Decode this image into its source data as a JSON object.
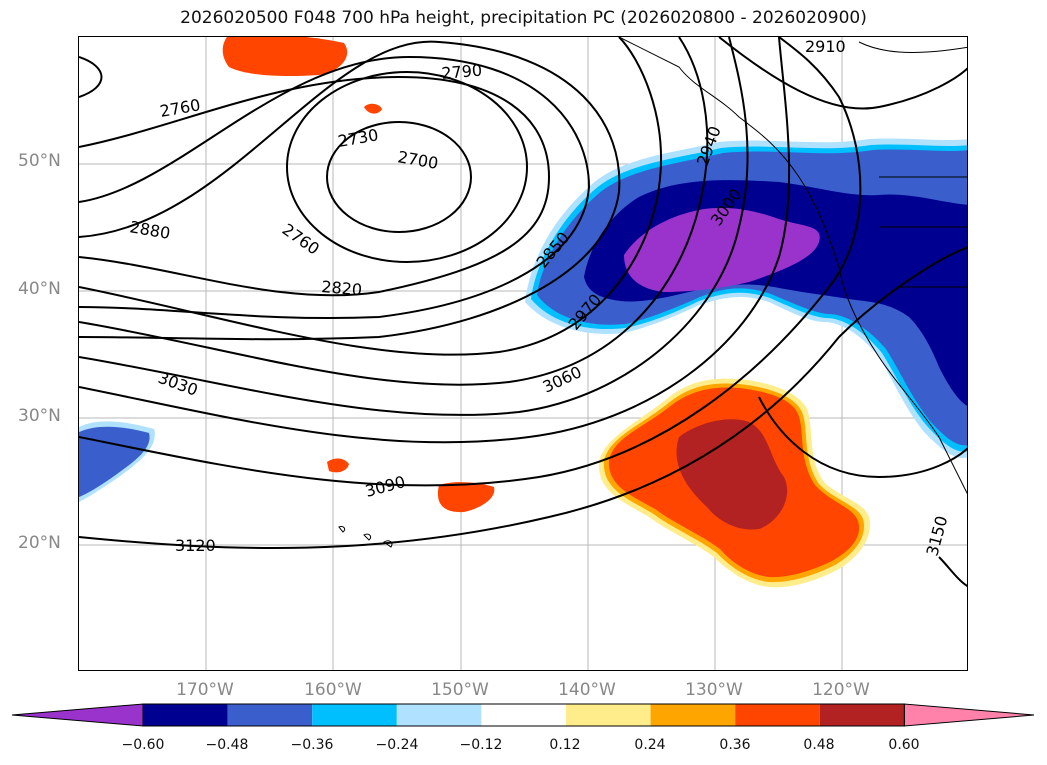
{
  "title": "2026020500 F048 700 hPa height, precipitation PC (2026020800 - 2026020900)",
  "map": {
    "lat_labels": [
      "50°N",
      "40°N",
      "30°N",
      "20°N"
    ],
    "lon_labels": [
      "170°W",
      "160°W",
      "150°W",
      "140°W",
      "130°W",
      "120°W"
    ],
    "contour_labels": [
      "2760",
      "2790",
      "2730",
      "2700",
      "2910",
      "2940",
      "3000",
      "2880",
      "2760",
      "2820",
      "2850",
      "2970",
      "3030",
      "3060",
      "3090",
      "3120",
      "3150"
    ],
    "colors": {
      "neg_060": "#9933cc",
      "neg_048": "#000090",
      "neg_036": "#3a5fcd",
      "neg_024": "#00bfff",
      "neg_012": "#b0e2ff",
      "pos_012": "#ffec8b",
      "pos_024": "#ffa500",
      "pos_036": "#ff4500",
      "pos_048": "#b22222",
      "pos_060": "#ff82ab"
    }
  },
  "colorbar": {
    "ticks": [
      "−0.60",
      "−0.48",
      "−0.36",
      "−0.24",
      "−0.12",
      "0.12",
      "0.24",
      "0.36",
      "0.48",
      "0.60"
    ],
    "segment_colors": [
      "#9933cc",
      "#000090",
      "#3a5fcd",
      "#00bfff",
      "#b0e2ff",
      "#ffffff",
      "#ffec8b",
      "#ffa500",
      "#ff4500",
      "#b22222",
      "#ff82ab"
    ]
  }
}
